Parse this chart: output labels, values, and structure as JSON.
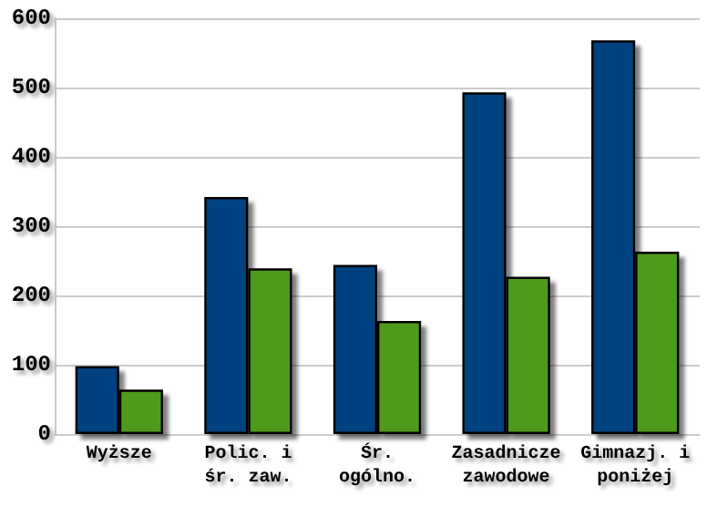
{
  "chart_data": {
    "type": "bar",
    "categories": [
      "Wyższe",
      "Polic. i\nśr. zaw.",
      "Śr.\nogólno.",
      "Zasadnicze\nzawodowe",
      "Gimnazj. i\nponiżej"
    ],
    "series": [
      {
        "color": "#00427f",
        "values": [
          98,
          342,
          244,
          493,
          568
        ]
      },
      {
        "color": "#4f9a1e",
        "values": [
          64,
          239,
          163,
          227,
          263
        ]
      }
    ],
    "ylim": [
      0,
      600
    ],
    "yticks": [
      0,
      100,
      200,
      300,
      400,
      500,
      600
    ],
    "grid": "y"
  }
}
